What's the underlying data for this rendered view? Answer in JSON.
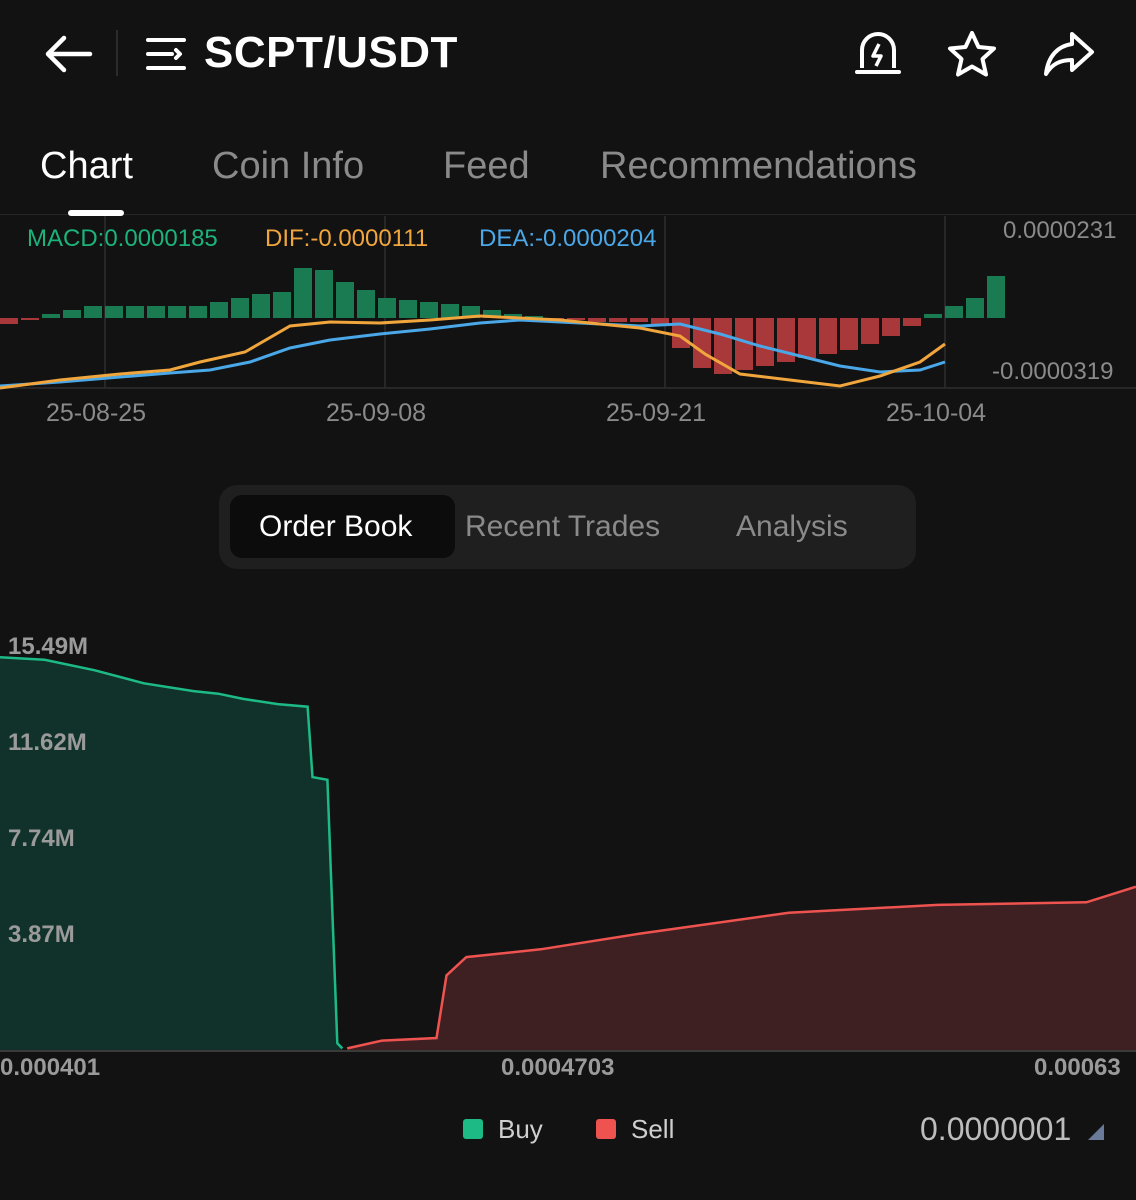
{
  "header": {
    "pair": "SCPT/USDT",
    "icons": [
      "back-arrow-icon",
      "menu-icon",
      "price-alert-icon",
      "star-icon",
      "share-icon"
    ]
  },
  "tabs": [
    {
      "label": "Chart",
      "active": true
    },
    {
      "label": "Coin Info",
      "active": false
    },
    {
      "label": "Feed",
      "active": false
    },
    {
      "label": "Recommendations",
      "active": false
    }
  ],
  "macd": {
    "macd_label": "MACD:0.0000185",
    "dif_label": "DIF:-0.0000111",
    "dea_label": "DEA:-0.0000204",
    "axis_top": "0.0000231",
    "axis_bottom": "-0.0000319",
    "dates": [
      "25-08-25",
      "25-09-08",
      "25-09-21",
      "25-10-04"
    ],
    "colors": {
      "macd": "#1cb37a",
      "dif": "#f0a63c",
      "dea": "#4aa8e8",
      "positive": "#1a7a52",
      "negative": "#a8383a"
    }
  },
  "segment": {
    "options": [
      "Order Book",
      "Recent Trades",
      "Analysis"
    ],
    "active": "Order Book"
  },
  "chart_data": {
    "type": "area",
    "title": "",
    "x_ticks": [
      "0.000401",
      "0.0004703",
      "0.00063"
    ],
    "y_ticks": [
      "15.49M",
      "11.62M",
      "7.74M",
      "3.87M"
    ],
    "xlim": [
      0.000401,
      0.00063
    ],
    "ylim": [
      0,
      15.49
    ],
    "series": [
      {
        "name": "Buy",
        "color": "#1dba86",
        "x": [
          0.000401,
          0.00041,
          0.00042,
          0.00043,
          0.00044,
          0.000445,
          0.00045,
          0.000457,
          0.000463,
          0.000464,
          0.000467,
          0.000469,
          0.00047
        ],
        "y": [
          15.1,
          15.0,
          14.6,
          14.1,
          13.8,
          13.7,
          13.5,
          13.3,
          13.2,
          10.5,
          10.4,
          0.3,
          0.1
        ]
      },
      {
        "name": "Sell",
        "color": "#ef5350",
        "x": [
          0.000471,
          0.000478,
          0.000489,
          0.000491,
          0.000495,
          0.00051,
          0.00053,
          0.00056,
          0.00059,
          0.00062,
          0.00063
        ],
        "y": [
          0.1,
          0.4,
          0.5,
          2.9,
          3.6,
          3.9,
          4.5,
          5.3,
          5.6,
          5.7,
          6.3
        ]
      }
    ]
  },
  "legend": {
    "buy": "Buy",
    "sell": "Sell"
  },
  "precision": "0.0000001"
}
